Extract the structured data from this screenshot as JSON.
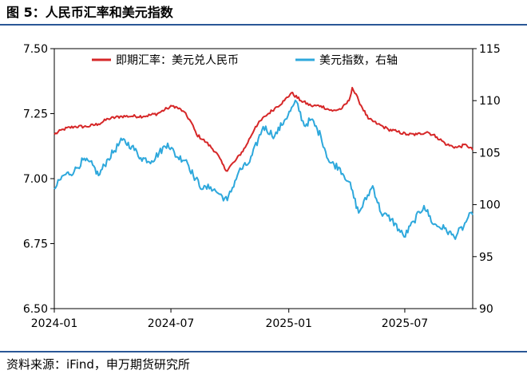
{
  "figure": {
    "title": "图 5：人民币汇率和美元指数",
    "source": "资料来源：iFind，申万期货研究所"
  },
  "colors": {
    "rule": "#2a5796",
    "usdcny": "#d62728",
    "dxy": "#2ea8dc",
    "axis": "#000000"
  },
  "chart_data": {
    "type": "line",
    "title": "",
    "x_range": [
      "2024-01-01",
      "2025-10-15"
    ],
    "x_ticks": [
      "2024-01",
      "2024-07",
      "2025-01",
      "2025-07"
    ],
    "y_left": {
      "ylim": [
        6.5,
        7.5
      ],
      "ticks": [
        "6.50",
        "6.75",
        "7.00",
        "7.25",
        "7.50"
      ]
    },
    "y_right": {
      "ylim": [
        90,
        115
      ],
      "ticks": [
        "90",
        "95",
        "100",
        "105",
        "110",
        "115"
      ]
    },
    "legend_position": "top",
    "grid": false,
    "series": [
      {
        "name": "即期汇率：美元兑人民币",
        "axis": "left",
        "color": "#d62728",
        "points": [
          [
            "2024-01-01",
            7.17
          ],
          [
            "2024-01-15",
            7.19
          ],
          [
            "2024-02-01",
            7.2
          ],
          [
            "2024-02-20",
            7.2
          ],
          [
            "2024-03-10",
            7.21
          ],
          [
            "2024-03-25",
            7.23
          ],
          [
            "2024-04-15",
            7.24
          ],
          [
            "2024-05-01",
            7.24
          ],
          [
            "2024-05-20",
            7.24
          ],
          [
            "2024-06-10",
            7.25
          ],
          [
            "2024-06-25",
            7.27
          ],
          [
            "2024-07-05",
            7.28
          ],
          [
            "2024-07-20",
            7.26
          ],
          [
            "2024-08-01",
            7.22
          ],
          [
            "2024-08-10",
            7.17
          ],
          [
            "2024-08-25",
            7.14
          ],
          [
            "2024-09-10",
            7.1
          ],
          [
            "2024-09-25",
            7.03
          ],
          [
            "2024-10-10",
            7.07
          ],
          [
            "2024-10-25",
            7.12
          ],
          [
            "2024-11-10",
            7.2
          ],
          [
            "2024-11-25",
            7.24
          ],
          [
            "2024-12-10",
            7.27
          ],
          [
            "2024-12-25",
            7.3
          ],
          [
            "2025-01-05",
            7.33
          ],
          [
            "2025-01-20",
            7.3
          ],
          [
            "2025-02-05",
            7.28
          ],
          [
            "2025-02-20",
            7.28
          ],
          [
            "2025-03-10",
            7.26
          ],
          [
            "2025-03-25",
            7.27
          ],
          [
            "2025-04-05",
            7.3
          ],
          [
            "2025-04-10",
            7.35
          ],
          [
            "2025-04-20",
            7.3
          ],
          [
            "2025-05-05",
            7.23
          ],
          [
            "2025-05-20",
            7.21
          ],
          [
            "2025-06-05",
            7.19
          ],
          [
            "2025-06-20",
            7.18
          ],
          [
            "2025-07-05",
            7.17
          ],
          [
            "2025-07-20",
            7.17
          ],
          [
            "2025-08-05",
            7.18
          ],
          [
            "2025-08-20",
            7.16
          ],
          [
            "2025-09-05",
            7.13
          ],
          [
            "2025-09-20",
            7.12
          ],
          [
            "2025-10-05",
            7.13
          ],
          [
            "2025-10-15",
            7.11
          ]
        ]
      },
      {
        "name": "美元指数，右轴",
        "axis": "right",
        "color": "#2ea8dc",
        "points": [
          [
            "2024-01-01",
            101.5
          ],
          [
            "2024-01-15",
            102.8
          ],
          [
            "2024-02-01",
            103.2
          ],
          [
            "2024-02-15",
            104.3
          ],
          [
            "2024-03-01",
            103.8
          ],
          [
            "2024-03-10",
            102.8
          ],
          [
            "2024-03-25",
            104.4
          ],
          [
            "2024-04-16",
            106.2
          ],
          [
            "2024-05-01",
            105.6
          ],
          [
            "2024-05-15",
            104.5
          ],
          [
            "2024-06-01",
            104.2
          ],
          [
            "2024-06-26",
            105.9
          ],
          [
            "2024-07-10",
            104.6
          ],
          [
            "2024-07-25",
            104.3
          ],
          [
            "2024-08-05",
            102.8
          ],
          [
            "2024-08-20",
            101.5
          ],
          [
            "2024-09-01",
            101.7
          ],
          [
            "2024-09-15",
            101.0
          ],
          [
            "2024-09-27",
            100.4
          ],
          [
            "2024-10-15",
            103.2
          ],
          [
            "2024-11-01",
            104.1
          ],
          [
            "2024-11-22",
            107.5
          ],
          [
            "2024-12-10",
            106.6
          ],
          [
            "2024-12-25",
            108.1
          ],
          [
            "2025-01-13",
            109.9
          ],
          [
            "2025-01-25",
            107.6
          ],
          [
            "2025-02-05",
            108.2
          ],
          [
            "2025-02-20",
            106.6
          ],
          [
            "2025-03-05",
            104.1
          ],
          [
            "2025-03-20",
            103.6
          ],
          [
            "2025-04-05",
            102.2
          ],
          [
            "2025-04-20",
            99.2
          ],
          [
            "2025-05-12",
            101.8
          ],
          [
            "2025-05-25",
            99.2
          ],
          [
            "2025-06-10",
            98.6
          ],
          [
            "2025-06-30",
            96.9
          ],
          [
            "2025-07-15",
            98.4
          ],
          [
            "2025-07-31",
            99.9
          ],
          [
            "2025-08-15",
            98.1
          ],
          [
            "2025-09-01",
            97.7
          ],
          [
            "2025-09-16",
            96.9
          ],
          [
            "2025-10-01",
            97.9
          ],
          [
            "2025-10-08",
            98.8
          ],
          [
            "2025-10-15",
            99.0
          ]
        ]
      }
    ]
  }
}
